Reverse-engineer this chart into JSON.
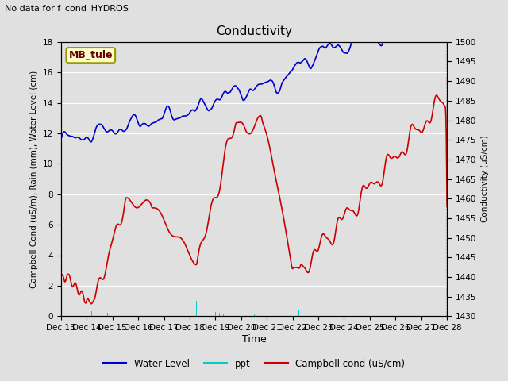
{
  "title": "Conductivity",
  "top_left_text": "No data for f_cond_HYDROS",
  "xlabel": "Time",
  "ylabel_left": "Campbell Cond (uS/m), Rain (mm), Water Level (cm)",
  "ylabel_right": "Conductivity (uS/cm)",
  "ylim_left": [
    0,
    18
  ],
  "ylim_right": [
    1430,
    1500
  ],
  "yticks_left": [
    0,
    2,
    4,
    6,
    8,
    10,
    12,
    14,
    16,
    18
  ],
  "yticks_right": [
    1430,
    1435,
    1440,
    1445,
    1450,
    1455,
    1460,
    1465,
    1470,
    1475,
    1480,
    1485,
    1490,
    1495,
    1500
  ],
  "xtick_labels": [
    "Dec 13",
    "Dec 14",
    "Dec 15",
    "Dec 16",
    "Dec 17",
    "Dec 18",
    "Dec 19",
    "Dec 20",
    "Dec 21",
    "Dec 22",
    "Dec 23",
    "Dec 24",
    "Dec 25",
    "Dec 26",
    "Dec 27",
    "Dec 28"
  ],
  "background_color": "#e0e0e0",
  "plot_bg_color": "#e0e0e0",
  "grid_color": "#ffffff",
  "box_label": "MB_tule",
  "box_color": "#ffffcc",
  "box_border": "#999900",
  "water_level_color": "#0000cc",
  "ppt_color": "#00cccc",
  "campbell_color": "#cc0000",
  "figwidth": 6.4,
  "figheight": 4.8,
  "dpi": 100
}
